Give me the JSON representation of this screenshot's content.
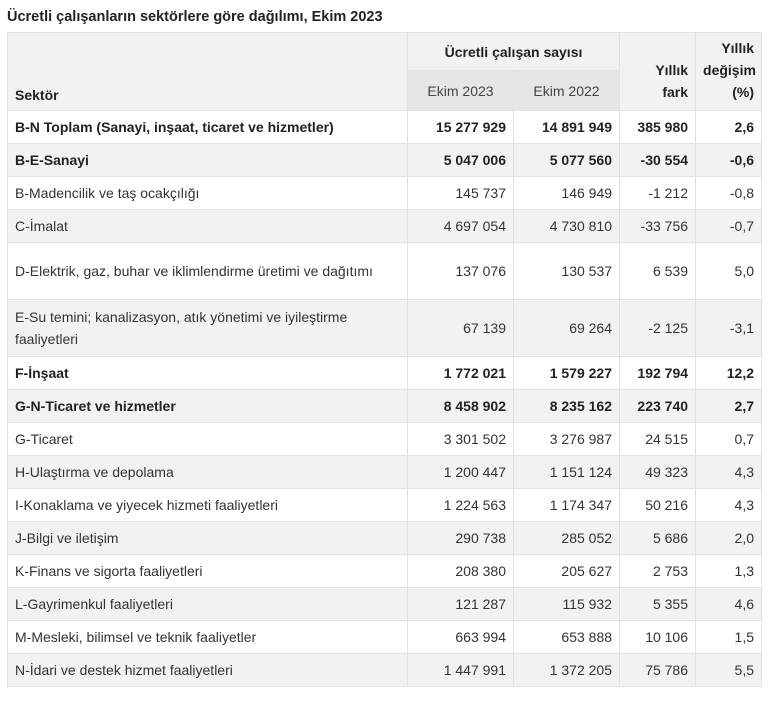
{
  "title": "Ücretli çalışanların sektörlere göre dağılımı, Ekim 2023",
  "header": {
    "sector": "Sektör",
    "group": "Ücretli çalışan sayısı",
    "col_2023": "Ekim 2023",
    "col_2022": "Ekim 2022",
    "diff_line1": "Yıllık",
    "diff_line2": "fark",
    "change_line1": "Yıllık",
    "change_line2": "değişim",
    "change_line3": "(%)"
  },
  "rows": [
    {
      "sector": "B-N Toplam (Sanayi, inşaat, ticaret ve hizmetler)",
      "ekim2023": "15 277 929",
      "ekim2022": "14 891 949",
      "fark": "385 980",
      "degisim": "2,6",
      "bold": true
    },
    {
      "sector": "B-E-Sanayi",
      "ekim2023": "5 047 006",
      "ekim2022": "5 077 560",
      "fark": "-30 554",
      "degisim": "-0,6",
      "bold": true
    },
    {
      "sector": "B-Madencilik ve taş ocakçılığı",
      "ekim2023": "145 737",
      "ekim2022": "146 949",
      "fark": "-1 212",
      "degisim": "-0,8"
    },
    {
      "sector": "C-İmalat",
      "ekim2023": "4 697 054",
      "ekim2022": "4 730 810",
      "fark": "-33 756",
      "degisim": "-0,7"
    },
    {
      "sector": "D-Elektrik, gaz, buhar ve iklimlendirme üretimi ve dağıtımı",
      "ekim2023": "137 076",
      "ekim2022": "130 537",
      "fark": "6 539",
      "degisim": "5,0",
      "tall": true
    },
    {
      "sector": "E-Su temini; kanalizasyon, atık yönetimi ve iyileştirme faaliyetleri",
      "ekim2023": "67 139",
      "ekim2022": "69 264",
      "fark": "-2 125",
      "degisim": "-3,1",
      "tall": true
    },
    {
      "sector": "F-İnşaat",
      "ekim2023": "1 772 021",
      "ekim2022": "1 579 227",
      "fark": "192 794",
      "degisim": "12,2",
      "bold": true
    },
    {
      "sector": "G-N-Ticaret ve hizmetler",
      "ekim2023": "8 458 902",
      "ekim2022": "8 235 162",
      "fark": "223 740",
      "degisim": "2,7",
      "bold": true
    },
    {
      "sector": "G-Ticaret",
      "ekim2023": "3 301 502",
      "ekim2022": "3 276 987",
      "fark": "24 515",
      "degisim": "0,7"
    },
    {
      "sector": "H-Ulaştırma ve depolama",
      "ekim2023": "1 200 447",
      "ekim2022": "1 151 124",
      "fark": "49 323",
      "degisim": "4,3"
    },
    {
      "sector": "I-Konaklama ve yiyecek hizmeti faaliyetleri",
      "ekim2023": "1 224 563",
      "ekim2022": "1 174 347",
      "fark": "50 216",
      "degisim": "4,3"
    },
    {
      "sector": "J-Bilgi ve iletişim",
      "ekim2023": "290 738",
      "ekim2022": "285 052",
      "fark": "5 686",
      "degisim": "2,0"
    },
    {
      "sector": "K-Finans ve sigorta faaliyetleri",
      "ekim2023": "208 380",
      "ekim2022": "205 627",
      "fark": "2 753",
      "degisim": "1,3"
    },
    {
      "sector": "L-Gayrimenkul faaliyetleri",
      "ekim2023": "121 287",
      "ekim2022": "115 932",
      "fark": "5 355",
      "degisim": "4,6"
    },
    {
      "sector": "M-Mesleki, bilimsel ve teknik faaliyetler",
      "ekim2023": "663 994",
      "ekim2022": "653 888",
      "fark": "10 106",
      "degisim": "1,5"
    },
    {
      "sector": "N-İdari ve destek hizmet faaliyetleri",
      "ekim2023": "1 447 991",
      "ekim2022": "1 372 205",
      "fark": "75 786",
      "degisim": "5,5"
    }
  ]
}
